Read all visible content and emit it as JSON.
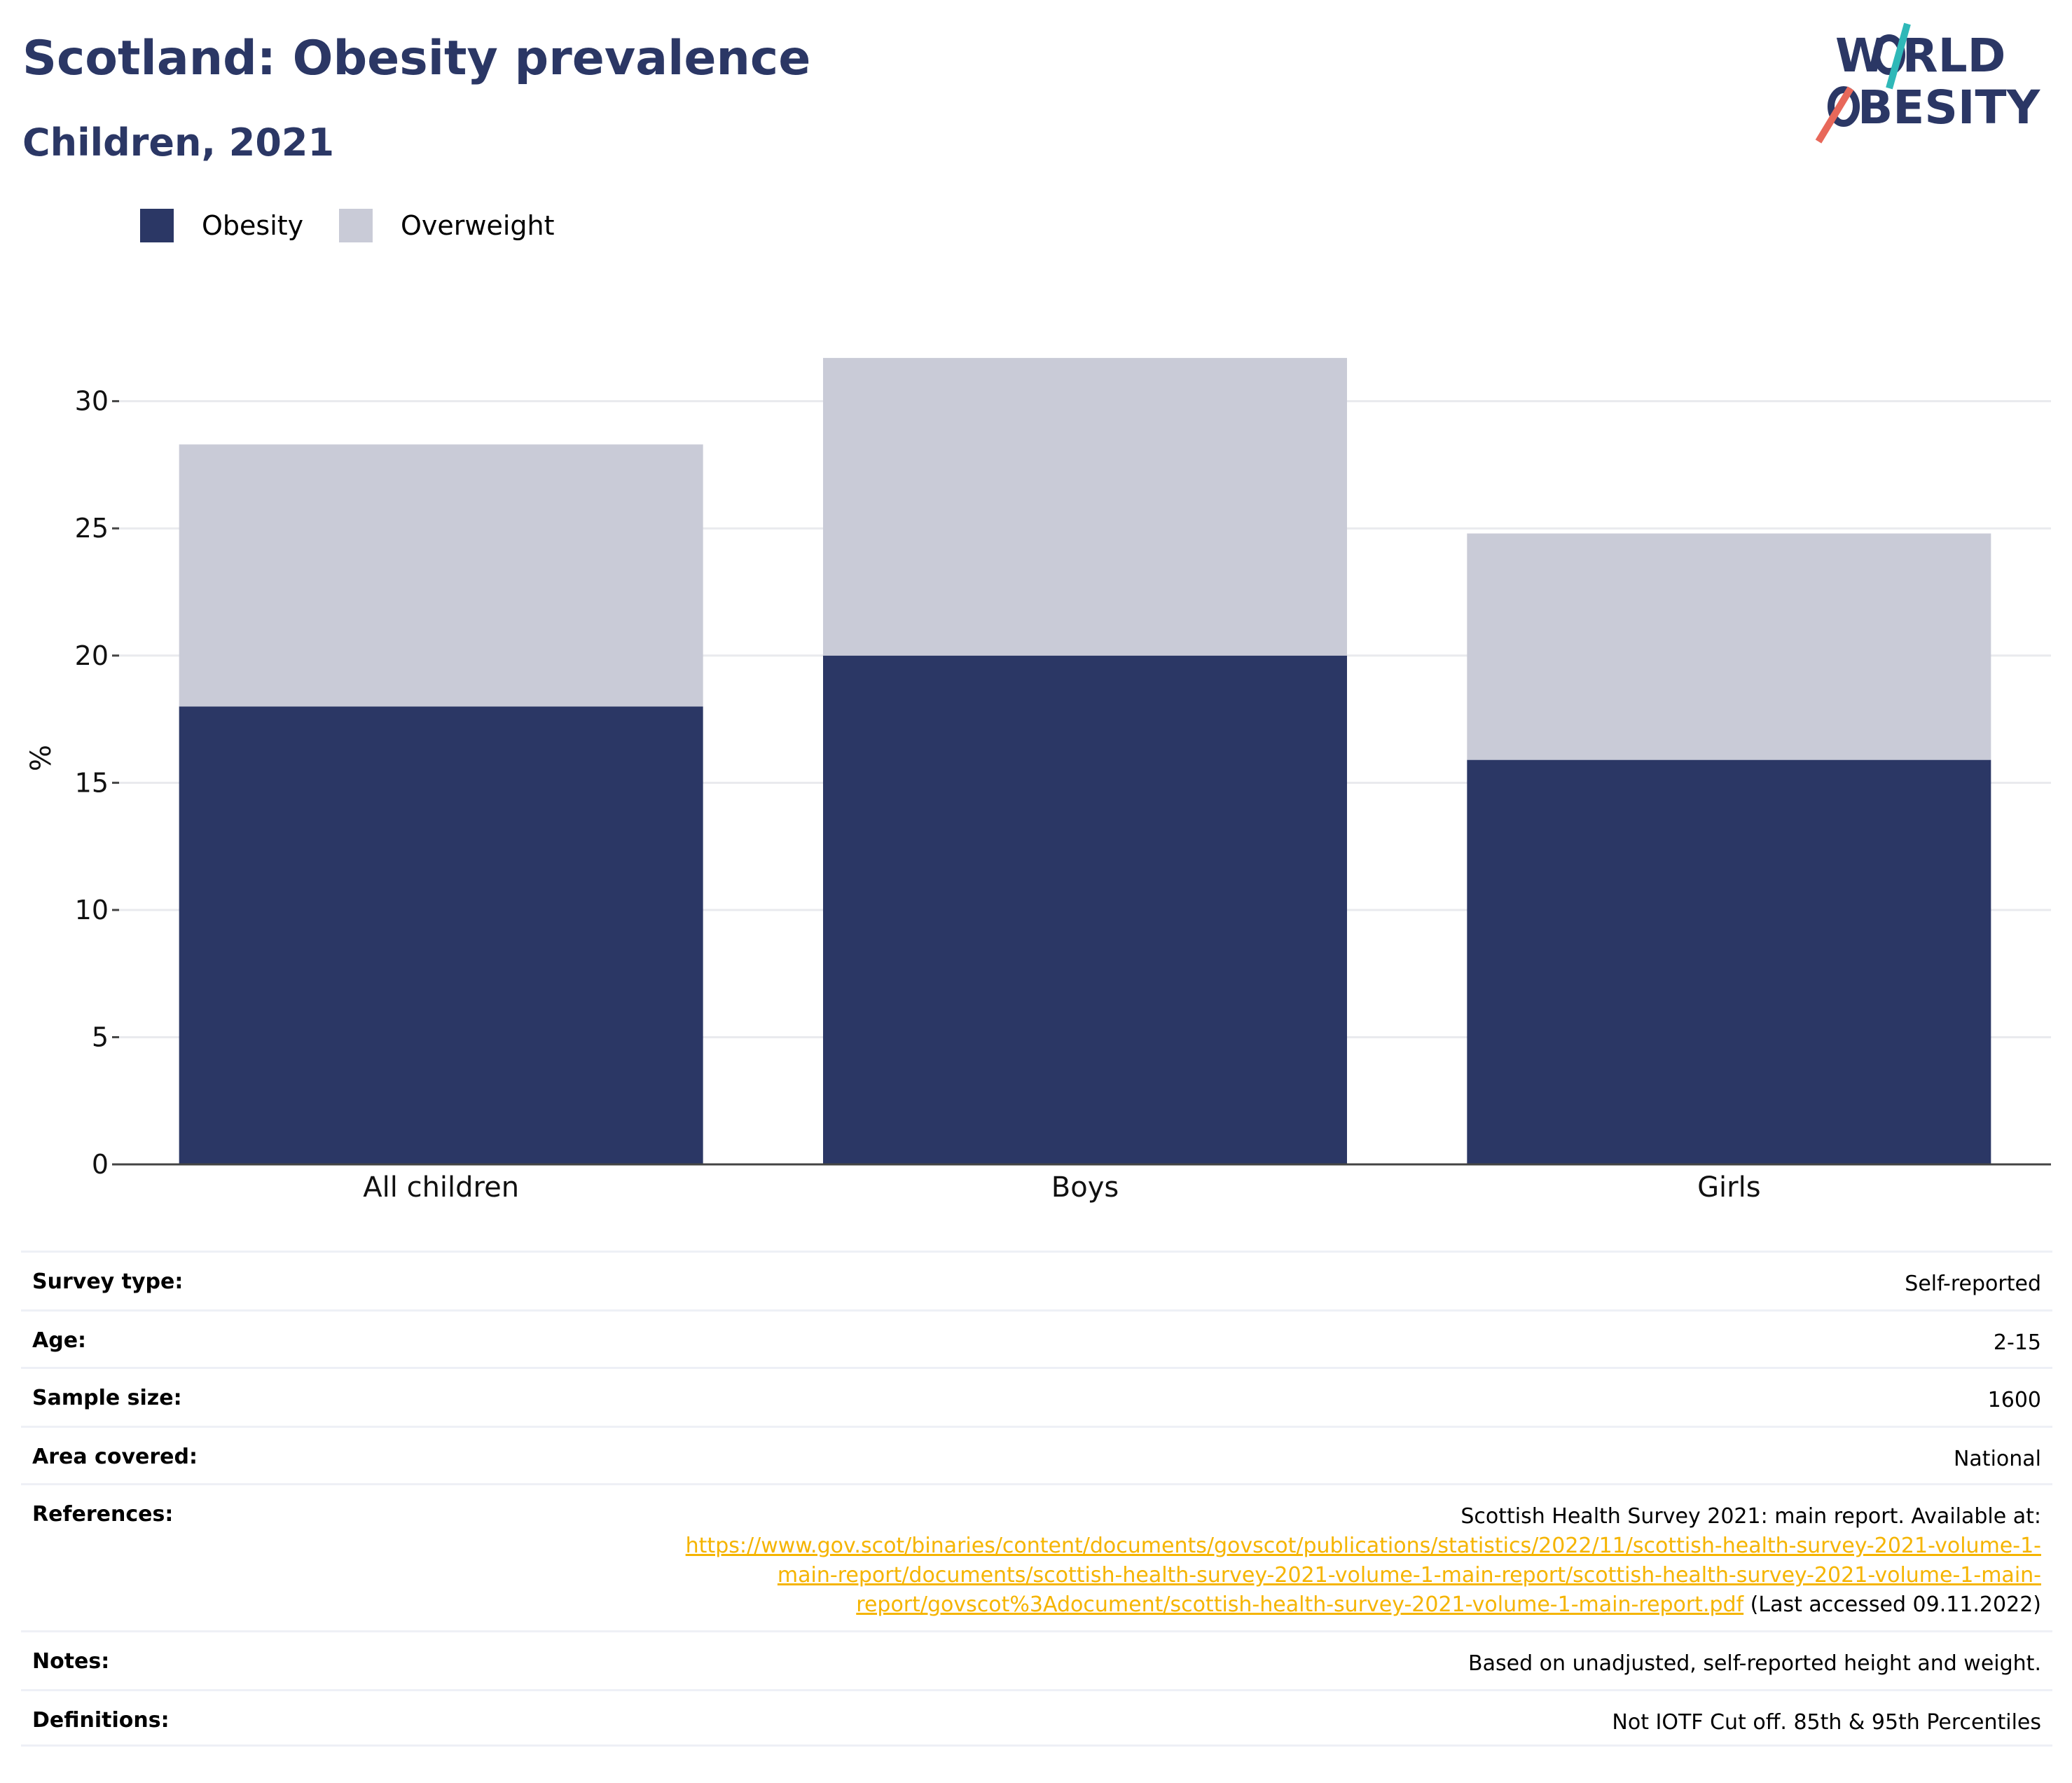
{
  "header": {
    "title": "Scotland: Obesity prevalence",
    "subtitle": "Children, 2021"
  },
  "logo": {
    "line1": "W RLD",
    "line2": "BESITY",
    "text_color": "#2b3765",
    "accent_teal": "#2fb8b8",
    "accent_red": "#e8685a"
  },
  "legend": [
    {
      "label": "Obesity",
      "color": "#2b3765"
    },
    {
      "label": "Overweight",
      "color": "#c9cbd7"
    }
  ],
  "chart_data": {
    "type": "bar",
    "stacked": true,
    "categories": [
      "All children",
      "Boys",
      "Girls"
    ],
    "series": [
      {
        "name": "Obesity",
        "values": [
          18,
          20,
          15.9
        ],
        "color": "#2b3765"
      },
      {
        "name": "Overweight",
        "values": [
          10.3,
          11.7,
          8.9
        ],
        "color": "#c9cbd7"
      }
    ],
    "ylabel": "%",
    "xlabel": "",
    "ylim": [
      0,
      32
    ],
    "yticks": [
      0,
      5,
      10,
      15,
      20,
      25,
      30
    ],
    "grid": true,
    "legend_position": "top-left"
  },
  "meta": [
    {
      "label": "Survey type:",
      "value": "Self-reported"
    },
    {
      "label": "Age:",
      "value": "2-15"
    },
    {
      "label": "Sample size:",
      "value": "1600"
    },
    {
      "label": "Area covered:",
      "value": "National"
    },
    {
      "label": "References:",
      "value": "Scottish Health Survey 2021: main report. Available at:",
      "link_lines": [
        "https://www.gov.scot/binaries/content/documents/govscot/publications/statistics/2022/11/scottish-health-survey-2021-volume-1-",
        "main-report/documents/scottish-health-survey-2021-volume-1-main-report/scottish-health-survey-2021-volume-1-main-",
        "report/govscot%3Adocument/scottish-health-survey-2021-volume-1-main-report.pdf"
      ],
      "suffix": " (Last accessed 09.11.2022)"
    },
    {
      "label": "Notes:",
      "value": "Based on unadjusted, self-reported height and weight."
    },
    {
      "label": "Definitions:",
      "value": "Not IOTF Cut off. 85th & 95th Percentiles"
    }
  ]
}
